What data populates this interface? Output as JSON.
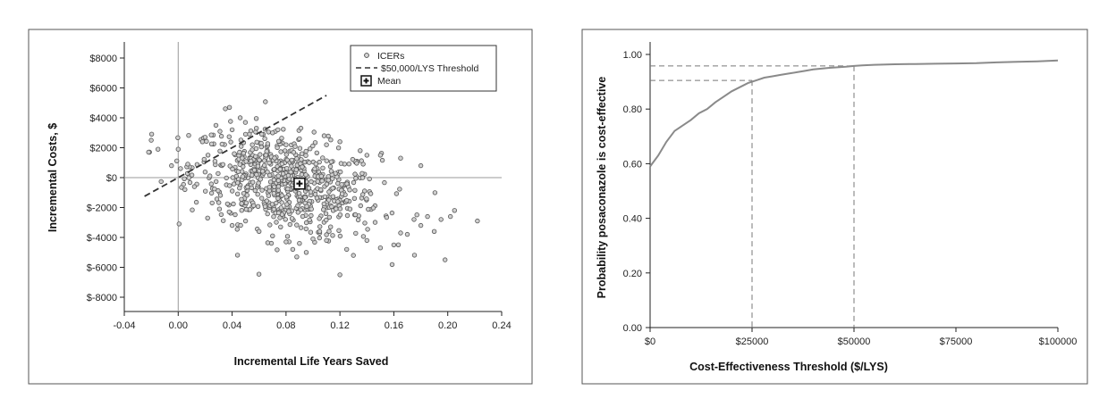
{
  "chart_data": [
    {
      "type": "scatter",
      "xlabel": "Incremental Life Years Saved",
      "ylabel": "Incremental Costs, $",
      "xlim": [
        -0.04,
        0.24
      ],
      "ylim": [
        -9000,
        9000
      ],
      "x_ticks": [
        "-0.04",
        "0.00",
        "0.04",
        "0.08",
        "0.12",
        "0.16",
        "0.20",
        "0.24"
      ],
      "x_tick_values": [
        -0.04,
        0.0,
        0.04,
        0.08,
        0.12,
        0.16,
        0.2,
        0.24
      ],
      "y_ticks": [
        "$8000",
        "$6000",
        "$4000",
        "$2000",
        "$0",
        "$-2000",
        "$-4000",
        "$-6000",
        "$-8000"
      ],
      "y_tick_values": [
        8000,
        6000,
        4000,
        2000,
        0,
        -2000,
        -4000,
        -6000,
        -8000
      ],
      "legend": {
        "placement": "top-right",
        "items": [
          {
            "label": "ICERs",
            "marker": "circle"
          },
          {
            "label": "$50,000/LYS Threshold",
            "marker": "dashed-line"
          },
          {
            "label": "Mean",
            "marker": "boxed-plus"
          }
        ]
      },
      "mean": {
        "x": 0.09,
        "y": -400
      },
      "threshold_line": {
        "slope_per_lys": 50000,
        "x_range": [
          -0.025,
          0.11
        ]
      },
      "reference_lines": {
        "x": 0.0,
        "y": 0
      },
      "scatter_summary": {
        "n_points": 700,
        "center_x": 0.08,
        "center_y": -400,
        "sd_x": 0.035,
        "sd_y": 1700,
        "correlation": -0.35
      },
      "points": [
        [
          -0.02,
          2500
        ],
        [
          -0.015,
          1900
        ],
        [
          -0.005,
          800
        ],
        [
          0.0,
          1900
        ],
        [
          0.005,
          -800
        ],
        [
          0.012,
          -600
        ],
        [
          0.018,
          2400
        ],
        [
          0.02,
          2700
        ],
        [
          0.028,
          3500
        ],
        [
          0.031,
          3100
        ],
        [
          0.035,
          4600
        ],
        [
          0.038,
          4700
        ],
        [
          0.04,
          3200
        ],
        [
          0.046,
          4000
        ],
        [
          0.05,
          2900
        ],
        [
          0.058,
          3300
        ],
        [
          0.062,
          2900
        ],
        [
          0.07,
          3000
        ],
        [
          0.074,
          3200
        ],
        [
          0.08,
          2200
        ],
        [
          0.09,
          2600
        ],
        [
          0.11,
          2200
        ],
        [
          0.12,
          2400
        ],
        [
          0.135,
          1800
        ],
        [
          0.14,
          1500
        ],
        [
          0.15,
          1500
        ],
        [
          0.165,
          1300
        ],
        [
          0.18,
          800
        ],
        [
          0.055,
          2200
        ],
        [
          0.065,
          1500
        ],
        [
          0.04,
          -3200
        ],
        [
          0.05,
          -2900
        ],
        [
          0.06,
          -3600
        ],
        [
          0.07,
          -3900
        ],
        [
          0.08,
          -4300
        ],
        [
          0.085,
          -4800
        ],
        [
          0.09,
          -4400
        ],
        [
          0.095,
          -5000
        ],
        [
          0.1,
          -4100
        ],
        [
          0.105,
          -3600
        ],
        [
          0.11,
          -4200
        ],
        [
          0.12,
          -6500
        ],
        [
          0.125,
          -4800
        ],
        [
          0.13,
          -5200
        ],
        [
          0.14,
          -4200
        ],
        [
          0.15,
          -4700
        ],
        [
          0.16,
          -4500
        ],
        [
          0.165,
          -3700
        ],
        [
          0.17,
          -3800
        ],
        [
          0.175,
          -2800
        ],
        [
          0.18,
          -3200
        ],
        [
          0.185,
          -2600
        ],
        [
          0.19,
          -3600
        ],
        [
          0.195,
          -2800
        ],
        [
          0.198,
          -5500
        ],
        [
          0.202,
          -2600
        ],
        [
          0.205,
          -2200
        ],
        [
          0.222,
          -2900
        ],
        [
          0.088,
          -5300
        ],
        [
          0.076,
          -3300
        ]
      ]
    },
    {
      "type": "line",
      "xlabel": "Cost-Effectiveness Threshold ($/LYS)",
      "ylabel": "Probability posaconazole is cost-effective",
      "xlim": [
        0,
        100000
      ],
      "ylim": [
        0,
        1.05
      ],
      "x_ticks": [
        "$0",
        "$25000",
        "$50000",
        "$75000",
        "$100000"
      ],
      "x_tick_values": [
        0,
        25000,
        50000,
        75000,
        100000
      ],
      "y_ticks": [
        "0.00",
        "0.20",
        "0.40",
        "0.60",
        "0.80",
        "1.00"
      ],
      "y_tick_values": [
        0,
        0.2,
        0.4,
        0.6,
        0.8,
        1.0
      ],
      "series": [
        {
          "x": [
            0,
            2000,
            4000,
            6000,
            8000,
            10000,
            12000,
            14000,
            16000,
            18000,
            20000,
            22000,
            24000,
            26000,
            28000,
            30000,
            32000,
            34000,
            36000,
            38000,
            40000,
            42000,
            44000,
            46000,
            48000,
            50000,
            52000,
            55000,
            60000,
            65000,
            70000,
            75000,
            80000,
            85000,
            90000,
            95000,
            100000
          ],
          "y": [
            0.59,
            0.63,
            0.68,
            0.72,
            0.74,
            0.76,
            0.785,
            0.8,
            0.825,
            0.845,
            0.865,
            0.88,
            0.895,
            0.905,
            0.915,
            0.92,
            0.925,
            0.93,
            0.935,
            0.94,
            0.945,
            0.948,
            0.951,
            0.953,
            0.955,
            0.958,
            0.96,
            0.962,
            0.964,
            0.965,
            0.966,
            0.967,
            0.968,
            0.971,
            0.973,
            0.975,
            0.978
          ]
        }
      ],
      "reference_lines": [
        {
          "x": 25000,
          "y": 0.905
        },
        {
          "x": 50000,
          "y": 0.958
        }
      ]
    }
  ]
}
